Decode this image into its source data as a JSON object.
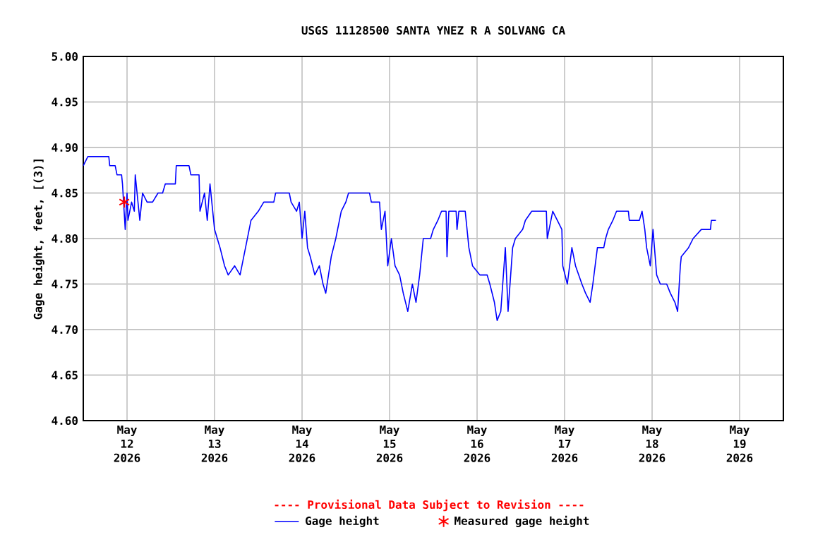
{
  "chart_data": {
    "type": "line",
    "title": "USGS 11128500 SANTA YNEZ R A SOLVANG CA",
    "ylabel": "Gage height, feet, [(3)]",
    "annotations": [
      "---- Provisional Data Subject to Revision ----"
    ],
    "xlim": [
      "2026-05-11T12:00",
      "2026-05-19T12:00"
    ],
    "xticks": [
      {
        "value": "2026-05-12",
        "label": "May 12 2026"
      },
      {
        "value": "2026-05-13",
        "label": "May 13 2026"
      },
      {
        "value": "2026-05-14",
        "label": "May 14 2026"
      },
      {
        "value": "2026-05-15",
        "label": "May 15 2026"
      },
      {
        "value": "2026-05-16",
        "label": "May 16 2026"
      },
      {
        "value": "2026-05-17",
        "label": "May 17 2026"
      },
      {
        "value": "2026-05-18",
        "label": "May 18 2026"
      },
      {
        "value": "2026-05-19",
        "label": "May 19 2026"
      }
    ],
    "ylim": [
      4.6,
      5.0
    ],
    "yticks": [
      {
        "value": 4.6,
        "label": "4.60"
      },
      {
        "value": 4.65,
        "label": "4.65"
      },
      {
        "value": 4.7,
        "label": "4.70"
      },
      {
        "value": 4.75,
        "label": "4.75"
      },
      {
        "value": 4.8,
        "label": "4.80"
      },
      {
        "value": 4.85,
        "label": "4.85"
      },
      {
        "value": 4.9,
        "label": "4.90"
      },
      {
        "value": 4.95,
        "label": "4.95"
      },
      {
        "value": 5.0,
        "label": "5.00"
      }
    ],
    "grid": true,
    "legend": "bottom",
    "line_style": "solid",
    "series": [
      {
        "name": "Gage height",
        "color": "#0000ff",
        "marker": "none",
        "x": [
          "2026-05-11T12:00",
          "2026-05-11T13:15",
          "2026-05-11T19:00",
          "2026-05-11T19:15",
          "2026-05-11T20:45",
          "2026-05-11T21:15",
          "2026-05-11T22:30",
          "2026-05-11T22:45",
          "2026-05-11T23:30",
          "2026-05-12T00:00",
          "2026-05-12T00:15",
          "2026-05-12T01:15",
          "2026-05-12T02:00",
          "2026-05-12T02:15",
          "2026-05-12T03:00",
          "2026-05-12T03:30",
          "2026-05-12T04:15",
          "2026-05-12T05:30",
          "2026-05-12T07:00",
          "2026-05-12T08:30",
          "2026-05-12T09:45",
          "2026-05-12T10:30",
          "2026-05-12T13:15",
          "2026-05-12T13:30",
          "2026-05-12T17:00",
          "2026-05-12T17:30",
          "2026-05-12T19:45",
          "2026-05-12T20:00",
          "2026-05-12T21:15",
          "2026-05-12T22:00",
          "2026-05-12T22:45",
          "2026-05-13T00:00",
          "2026-05-13T01:30",
          "2026-05-13T02:45",
          "2026-05-13T03:45",
          "2026-05-13T05:30",
          "2026-05-13T07:00",
          "2026-05-13T08:30",
          "2026-05-13T10:00",
          "2026-05-13T12:00",
          "2026-05-13T13:30",
          "2026-05-13T16:15",
          "2026-05-13T16:45",
          "2026-05-13T20:30",
          "2026-05-13T21:00",
          "2026-05-13T22:30",
          "2026-05-13T23:15",
          "2026-05-14T00:00",
          "2026-05-14T00:45",
          "2026-05-14T01:30",
          "2026-05-14T02:15",
          "2026-05-14T03:30",
          "2026-05-14T04:45",
          "2026-05-14T05:45",
          "2026-05-14T06:30",
          "2026-05-14T07:15",
          "2026-05-14T08:00",
          "2026-05-14T09:15",
          "2026-05-14T10:45",
          "2026-05-14T12:00",
          "2026-05-14T12:45",
          "2026-05-14T18:30",
          "2026-05-14T19:00",
          "2026-05-14T21:15",
          "2026-05-14T21:45",
          "2026-05-14T22:45",
          "2026-05-14T23:30",
          "2026-05-15T00:30",
          "2026-05-15T01:30",
          "2026-05-15T02:45",
          "2026-05-15T03:45",
          "2026-05-15T05:00",
          "2026-05-15T06:15",
          "2026-05-15T07:15",
          "2026-05-15T08:15",
          "2026-05-15T09:15",
          "2026-05-15T11:15",
          "2026-05-15T12:00",
          "2026-05-15T13:15",
          "2026-05-15T14:15",
          "2026-05-15T15:30",
          "2026-05-15T15:45",
          "2026-05-15T16:15",
          "2026-05-15T18:15",
          "2026-05-15T18:30",
          "2026-05-15T19:00",
          "2026-05-15T20:45",
          "2026-05-15T21:45",
          "2026-05-15T22:45",
          "2026-05-16T00:45",
          "2026-05-16T02:45",
          "2026-05-16T03:30",
          "2026-05-16T04:45",
          "2026-05-16T05:30",
          "2026-05-16T06:30",
          "2026-05-16T07:45",
          "2026-05-16T08:30",
          "2026-05-16T09:45",
          "2026-05-16T10:30",
          "2026-05-16T12:30",
          "2026-05-16T13:15",
          "2026-05-16T15:00",
          "2026-05-16T19:00",
          "2026-05-16T19:15",
          "2026-05-16T20:45",
          "2026-05-16T22:00",
          "2026-05-16T23:15",
          "2026-05-16T23:30",
          "2026-05-17T00:45",
          "2026-05-17T02:00",
          "2026-05-17T03:00",
          "2026-05-17T04:45",
          "2026-05-17T05:45",
          "2026-05-17T07:00",
          "2026-05-17T07:45",
          "2026-05-17T09:00",
          "2026-05-17T10:45",
          "2026-05-17T11:15",
          "2026-05-17T12:00",
          "2026-05-17T13:15",
          "2026-05-17T14:15",
          "2026-05-17T17:30",
          "2026-05-17T17:45",
          "2026-05-17T20:30",
          "2026-05-17T21:15",
          "2026-05-17T22:00",
          "2026-05-17T22:30",
          "2026-05-17T23:30",
          "2026-05-18T00:15",
          "2026-05-18T01:15",
          "2026-05-18T02:15",
          "2026-05-18T04:00",
          "2026-05-18T05:00",
          "2026-05-18T06:15",
          "2026-05-18T07:00",
          "2026-05-18T07:45",
          "2026-05-18T08:00",
          "2026-05-18T10:00",
          "2026-05-18T11:15",
          "2026-05-18T13:30",
          "2026-05-18T16:00",
          "2026-05-18T16:15",
          "2026-05-18T17:30"
        ],
        "values": [
          4.88,
          4.89,
          4.89,
          4.88,
          4.88,
          4.87,
          4.87,
          4.86,
          4.81,
          4.85,
          4.82,
          4.84,
          4.83,
          4.87,
          4.84,
          4.82,
          4.85,
          4.84,
          4.84,
          4.85,
          4.85,
          4.86,
          4.86,
          4.88,
          4.88,
          4.87,
          4.87,
          4.83,
          4.85,
          4.82,
          4.86,
          4.81,
          4.79,
          4.77,
          4.76,
          4.77,
          4.76,
          4.79,
          4.82,
          4.83,
          4.84,
          4.84,
          4.85,
          4.85,
          4.84,
          4.83,
          4.84,
          4.8,
          4.83,
          4.79,
          4.78,
          4.76,
          4.77,
          4.75,
          4.74,
          4.76,
          4.78,
          4.8,
          4.83,
          4.84,
          4.85,
          4.85,
          4.84,
          4.84,
          4.81,
          4.83,
          4.77,
          4.8,
          4.77,
          4.76,
          4.74,
          4.72,
          4.75,
          4.73,
          4.76,
          4.8,
          4.8,
          4.81,
          4.82,
          4.83,
          4.83,
          4.78,
          4.83,
          4.83,
          4.81,
          4.83,
          4.83,
          4.79,
          4.77,
          4.76,
          4.76,
          4.75,
          4.73,
          4.71,
          4.72,
          4.79,
          4.72,
          4.79,
          4.8,
          4.81,
          4.82,
          4.83,
          4.83,
          4.8,
          4.83,
          4.82,
          4.81,
          4.77,
          4.75,
          4.79,
          4.77,
          4.75,
          4.74,
          4.73,
          4.75,
          4.79,
          4.79,
          4.8,
          4.81,
          4.82,
          4.83,
          4.83,
          4.82,
          4.82,
          4.83,
          4.81,
          4.79,
          4.77,
          4.81,
          4.76,
          4.75,
          4.75,
          4.74,
          4.73,
          4.72,
          4.77,
          4.78,
          4.79,
          4.8,
          4.81,
          4.81,
          4.82,
          4.82
        ]
      },
      {
        "name": "Measured gage height",
        "color": "#ff0000",
        "type": "scatter",
        "marker": "cross",
        "x": [
          "2026-05-11T23:15"
        ],
        "values": [
          4.84
        ]
      }
    ]
  }
}
